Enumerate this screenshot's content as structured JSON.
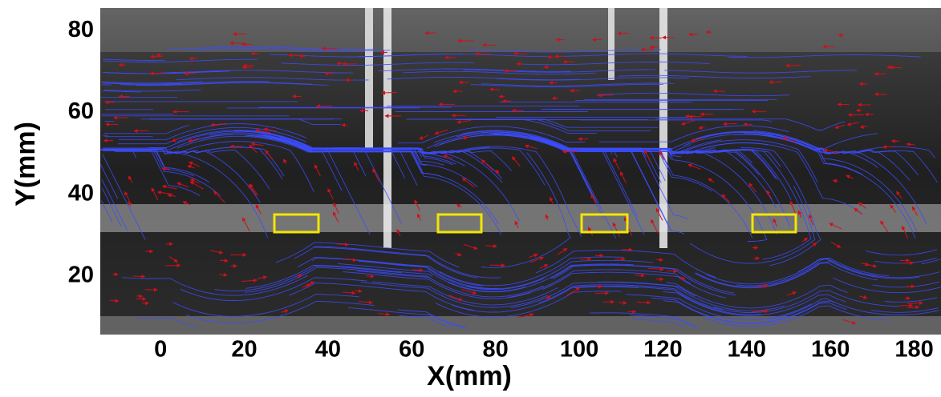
{
  "chart_data": {
    "type": "image",
    "x_label": "X(mm)",
    "y_label": "Y(mm)",
    "xlim": [
      -14.4,
      186.4
    ],
    "ylim": [
      5.7,
      85.5
    ],
    "xticks": [
      0,
      20,
      40,
      60,
      80,
      100,
      120,
      140,
      160,
      180
    ],
    "yticks": [
      20,
      40,
      60,
      80
    ]
  }
}
